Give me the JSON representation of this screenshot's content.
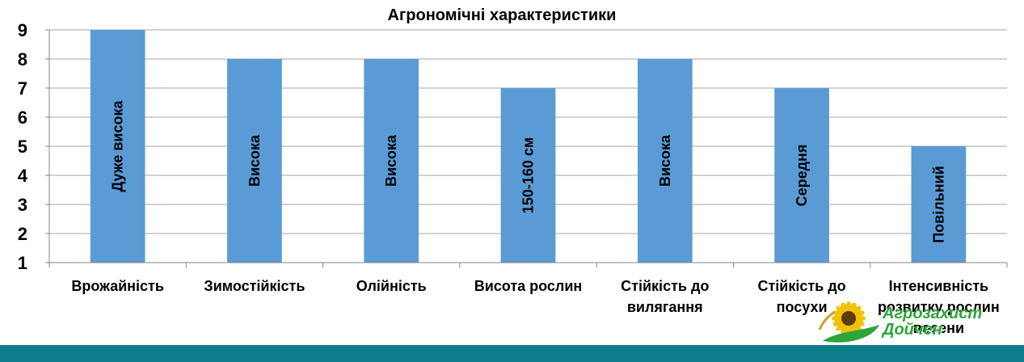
{
  "chart_data": {
    "type": "bar",
    "title": "Агрономічні характеристики",
    "categories": [
      [
        "Врожайність"
      ],
      [
        "Зимостійкість"
      ],
      [
        "Олійність"
      ],
      [
        "Висота рослин"
      ],
      [
        "Стійкість до",
        "вилягання"
      ],
      [
        "Стійкість до",
        "посухи"
      ],
      [
        "Інтенсивність",
        "розвитку рослин",
        "восени"
      ]
    ],
    "values": [
      9,
      8,
      8,
      7,
      8,
      7,
      5
    ],
    "bar_labels": [
      "Дуже висока",
      "Висока",
      "Висока",
      "150-160 см",
      "Висока",
      "Середня",
      "Повільний"
    ],
    "ylim": [
      1,
      9
    ],
    "yticks": [
      1,
      2,
      3,
      4,
      5,
      6,
      7,
      8,
      9
    ],
    "grid": true,
    "bar_color": "#5b9bd5",
    "grid_color": "#a6a6a6",
    "axis_color": "#868686"
  },
  "logo": {
    "line1": "Агрозахист",
    "line2": "Дойчен",
    "text_color": "#2ea43a",
    "sun_color": "#f2c200"
  },
  "colors": {
    "footer_bar": "#0f7c8c"
  }
}
